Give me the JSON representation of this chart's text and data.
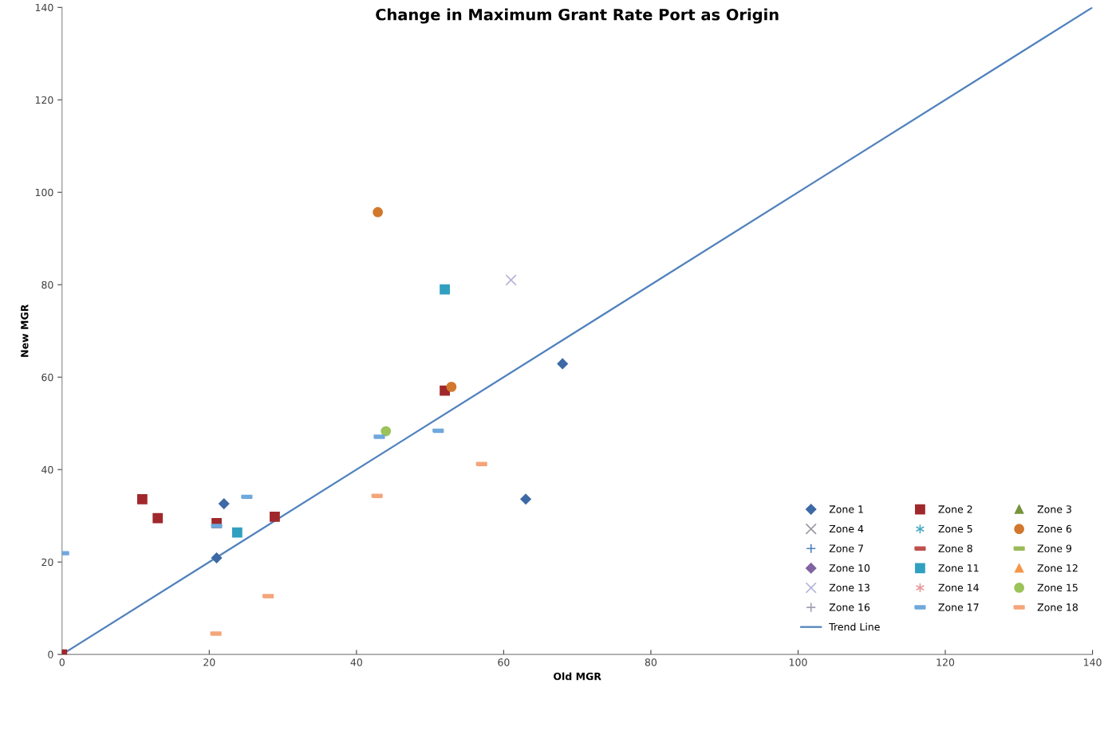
{
  "chart_data": {
    "type": "scatter",
    "title": "Change in Maximum Grant Rate Port as Origin",
    "xlabel": "Old MGR",
    "ylabel": "New MGR",
    "xlim": [
      0,
      140
    ],
    "ylim": [
      0,
      140
    ],
    "xticks": [
      0,
      20,
      40,
      60,
      80,
      100,
      120,
      140
    ],
    "yticks": [
      0,
      20,
      40,
      60,
      80,
      100,
      120,
      140
    ],
    "grid": false,
    "legend": "bottom right",
    "series": [
      {
        "name": "Zone 1",
        "color": "#3d6aa6",
        "marker": "diamond",
        "x": [
          22.0,
          21.0,
          68.0,
          63.0
        ],
        "values": [
          32.6,
          20.9,
          62.9,
          33.6
        ]
      },
      {
        "name": "Zone 2",
        "color": "#a0282c",
        "marker": "square",
        "x": [
          0,
          10.9,
          13.0,
          21.0,
          28.9,
          52.0
        ],
        "values": [
          0,
          33.6,
          29.5,
          28.4,
          29.8,
          57.1
        ]
      },
      {
        "name": "Zone 3",
        "color": "#77933c",
        "marker": "triangle"
      },
      {
        "name": "Zone 4",
        "color": "#9a9aa6",
        "marker": "cross"
      },
      {
        "name": "Zone 5",
        "color": "#4bacc6",
        "marker": "star"
      },
      {
        "name": "Zone 6",
        "color": "#d2782c",
        "marker": "circle",
        "x": [
          42.9,
          52.9
        ],
        "values": [
          95.7,
          57.9
        ]
      },
      {
        "name": "Zone 7",
        "color": "#4f81bd",
        "marker": "plus"
      },
      {
        "name": "Zone 8",
        "color": "#c0504d"
      },
      {
        "name": "Zone 9",
        "color": "#9bbb59"
      },
      {
        "name": "Zone 10",
        "color": "#8064a2",
        "marker": "diamond"
      },
      {
        "name": "Zone 11",
        "color": "#31a0c0",
        "marker": "square",
        "x": [
          52.0,
          23.8
        ],
        "values": [
          79.0,
          26.4
        ]
      },
      {
        "name": "Zone 12",
        "color": "#f79646",
        "marker": "triangle"
      },
      {
        "name": "Zone 13",
        "color": "#b4b4d8",
        "marker": "cross",
        "x": [
          61.0
        ],
        "values": [
          81.0
        ]
      },
      {
        "name": "Zone 14",
        "color": "#e89a9a",
        "marker": "star"
      },
      {
        "name": "Zone 15",
        "color": "#9bc35a",
        "marker": "circle",
        "x": [
          44.0
        ],
        "values": [
          48.3
        ]
      },
      {
        "name": "Zone 16",
        "color": "#a0a0b4",
        "marker": "plus"
      },
      {
        "name": "Zone 17",
        "color": "#6fa8dc",
        "x": [
          0.2,
          25.1,
          43.1,
          51.1,
          21.0
        ],
        "values": [
          21.9,
          34.1,
          47.1,
          48.4,
          27.8
        ]
      },
      {
        "name": "Zone 18",
        "color": "#f4a57a",
        "x": [
          20.9,
          28.0,
          42.8,
          57.0
        ],
        "values": [
          4.5,
          12.6,
          34.3,
          41.2
        ]
      },
      {
        "name": "Trend Line",
        "type": "line",
        "color": "#4f81bd",
        "marker": "none",
        "x": [
          0,
          140
        ],
        "values": [
          0,
          140
        ]
      }
    ]
  }
}
